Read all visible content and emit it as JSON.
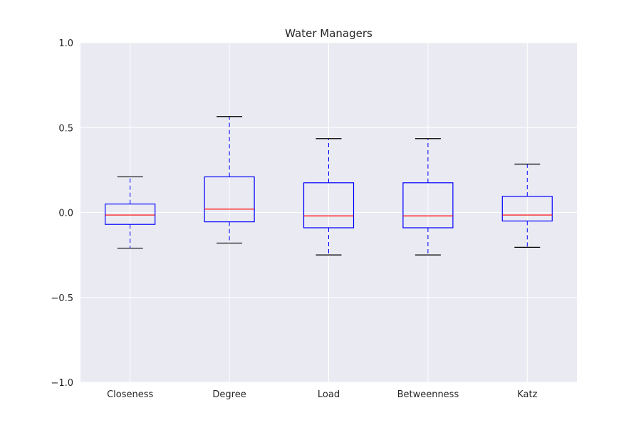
{
  "chart_data": {
    "type": "box",
    "title": "Water Managers",
    "xlabel": "",
    "ylabel": "",
    "ylim": [
      -1.0,
      1.0
    ],
    "y_ticks": [
      "1.0",
      "0.5",
      "0.0",
      "−0.5",
      "−1.0"
    ],
    "y_tick_values": [
      1.0,
      0.5,
      0.0,
      -0.5,
      -1.0
    ],
    "grid": true,
    "categories": [
      "Closeness",
      "Degree",
      "Load",
      "Betweenness",
      "Katz"
    ],
    "boxes": [
      {
        "label": "Closeness",
        "whisker_low": -0.21,
        "q1": -0.07,
        "median": -0.015,
        "q3": 0.05,
        "whisker_high": 0.21
      },
      {
        "label": "Degree",
        "whisker_low": -0.18,
        "q1": -0.055,
        "median": 0.02,
        "q3": 0.21,
        "whisker_high": 0.565
      },
      {
        "label": "Load",
        "whisker_low": -0.25,
        "q1": -0.09,
        "median": -0.02,
        "q3": 0.175,
        "whisker_high": 0.435
      },
      {
        "label": "Betweenness",
        "whisker_low": -0.25,
        "q1": -0.09,
        "median": -0.02,
        "q3": 0.175,
        "whisker_high": 0.435
      },
      {
        "label": "Katz",
        "whisker_low": -0.205,
        "q1": -0.05,
        "median": -0.015,
        "q3": 0.095,
        "whisker_high": 0.285
      }
    ],
    "colors": {
      "plot_background": "#eaeaf2",
      "grid": "#ffffff",
      "box": "#0000ff",
      "median": "#ff0000",
      "whisker": "#0000ff",
      "cap": "#000000",
      "text": "#262626"
    }
  }
}
